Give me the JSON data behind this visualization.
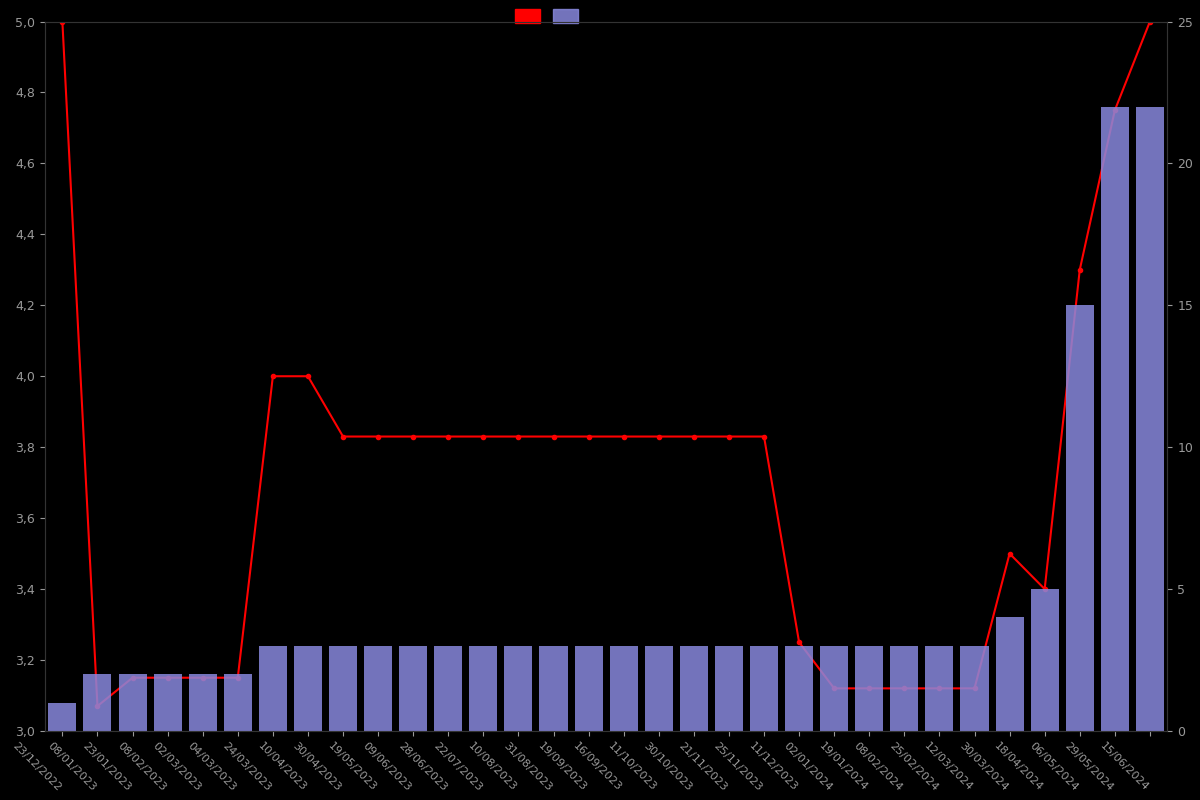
{
  "background_color": "#000000",
  "text_color": "#999999",
  "bar_color": "#8888dd",
  "line_color": "#ff0000",
  "ylim_left": [
    3.0,
    5.0
  ],
  "ylim_right": [
    0,
    25
  ],
  "dates": [
    "23/12/2022",
    "08/01/2023",
    "23/01/2023",
    "08/02/2023",
    "02/03/2023",
    "04/03/2023",
    "24/03/2023",
    "10/04/2023",
    "30/04/2023",
    "19/05/2023",
    "09/06/2023",
    "28/06/2023",
    "22/07/2023",
    "10/08/2023",
    "31/08/2023",
    "19/09/2023",
    "16/09/2023",
    "11/10/2023",
    "30/10/2023",
    "21/11/2023",
    "25/11/2023",
    "11/12/2023",
    "02/01/2024",
    "19/01/2024",
    "08/02/2024",
    "25/02/2024",
    "12/03/2024",
    "30/03/2024",
    "18/04/2024",
    "06/05/2024",
    "29/05/2024",
    "15/06/2024"
  ],
  "bar_counts": [
    1,
    2,
    2,
    2,
    2,
    2,
    3,
    3,
    3,
    3,
    3,
    3,
    3,
    3,
    3,
    3,
    3,
    3,
    3,
    3,
    3,
    3,
    3,
    3,
    3,
    3,
    3,
    4,
    5,
    15,
    22,
    22
  ],
  "avg_ratings": [
    5.0,
    3.07,
    3.15,
    3.15,
    3.15,
    3.15,
    4.0,
    4.0,
    3.83,
    3.83,
    3.83,
    3.83,
    3.83,
    3.83,
    3.83,
    3.83,
    3.83,
    3.83,
    3.83,
    3.83,
    3.83,
    3.25,
    3.12,
    3.12,
    3.12,
    3.12,
    3.12,
    3.5,
    3.4,
    4.3,
    4.75,
    5.0
  ],
  "marker": "o",
  "marker_size": 3,
  "line_width": 1.5
}
